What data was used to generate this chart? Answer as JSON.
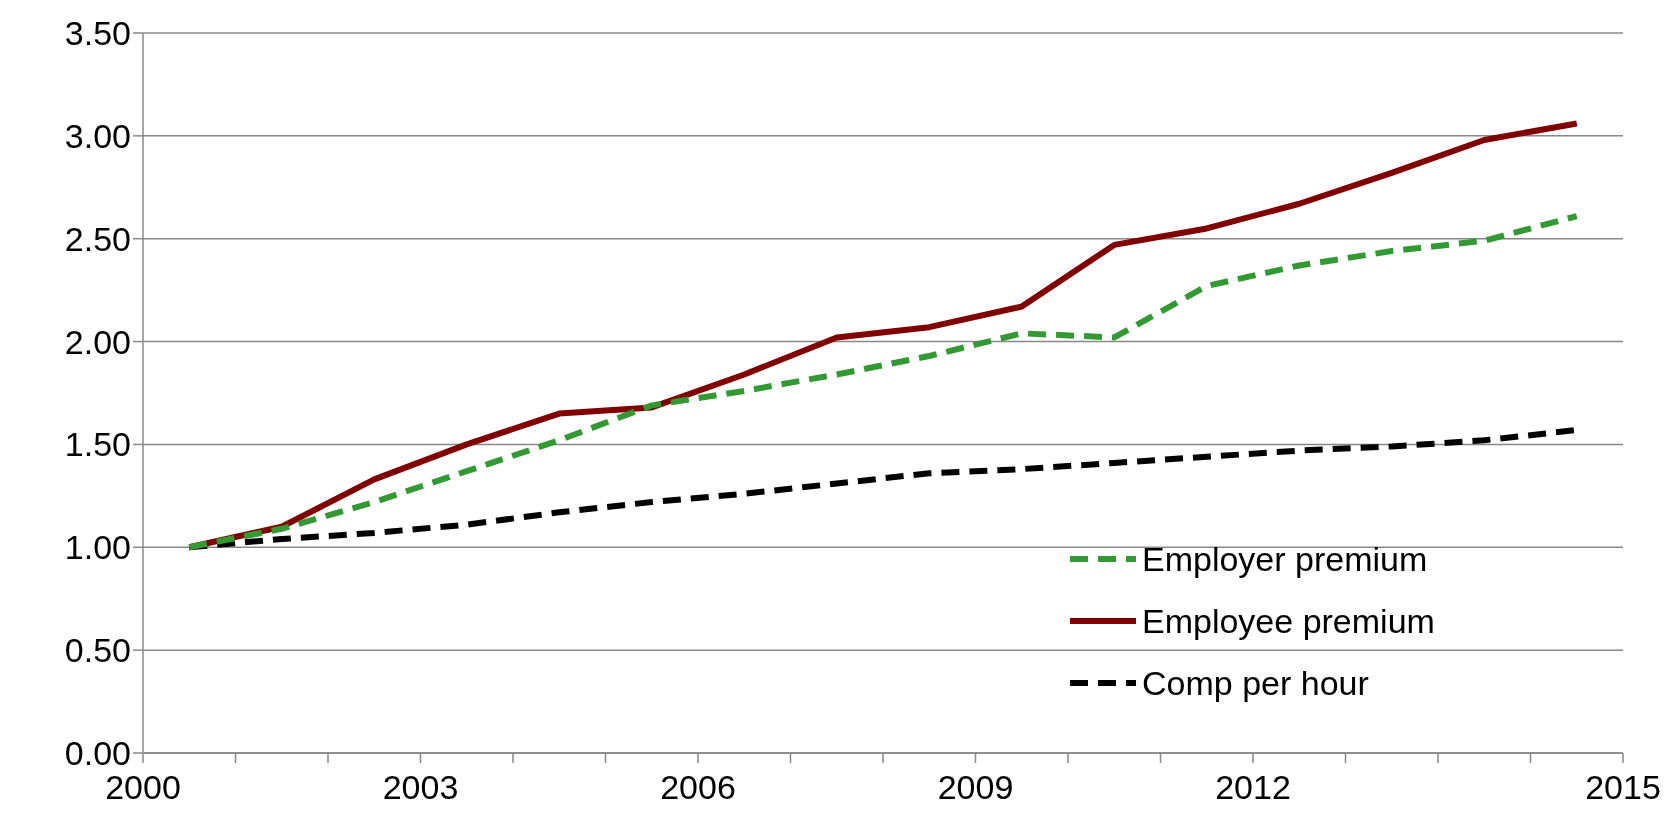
{
  "chart_data": {
    "type": "line",
    "x": [
      2000,
      2001,
      2002,
      2003,
      2004,
      2005,
      2006,
      2007,
      2008,
      2009,
      2010,
      2011,
      2012,
      2013,
      2014,
      2015
    ],
    "series": [
      {
        "name": "Employer premium",
        "color": "#339933",
        "line_style": "dashed",
        "values": [
          1.0,
          1.09,
          1.22,
          1.37,
          1.52,
          1.69,
          1.76,
          1.84,
          1.93,
          2.04,
          2.02,
          2.27,
          2.37,
          2.44,
          2.49,
          2.61
        ]
      },
      {
        "name": "Employee premium",
        "color": "#800000",
        "line_style": "solid",
        "values": [
          1.0,
          1.1,
          1.33,
          1.5,
          1.65,
          1.68,
          1.84,
          2.02,
          2.07,
          2.17,
          2.47,
          2.55,
          2.67,
          2.82,
          2.98,
          3.06
        ]
      },
      {
        "name": "Comp per hour",
        "color": "#000000",
        "line_style": "dashed",
        "values": [
          1.0,
          1.04,
          1.07,
          1.11,
          1.17,
          1.22,
          1.26,
          1.31,
          1.36,
          1.38,
          1.41,
          1.44,
          1.47,
          1.49,
          1.52,
          1.57
        ]
      }
    ],
    "xlim": [
      1999.5,
      2015.5
    ],
    "xticks": [
      {
        "value": 1999.5,
        "label": "2000"
      },
      {
        "value": 2000.5,
        "label": null
      },
      {
        "value": 2001.5,
        "label": null
      },
      {
        "value": 2002.5,
        "label": "2003"
      },
      {
        "value": 2003.5,
        "label": null
      },
      {
        "value": 2004.5,
        "label": null
      },
      {
        "value": 2005.5,
        "label": "2006"
      },
      {
        "value": 2006.5,
        "label": null
      },
      {
        "value": 2007.5,
        "label": null
      },
      {
        "value": 2008.5,
        "label": "2009"
      },
      {
        "value": 2009.5,
        "label": null
      },
      {
        "value": 2010.5,
        "label": null
      },
      {
        "value": 2011.5,
        "label": "2012"
      },
      {
        "value": 2012.5,
        "label": null
      },
      {
        "value": 2013.5,
        "label": null
      },
      {
        "value": 2014.5,
        "label": null
      },
      {
        "value": 2015.5,
        "label": "2015"
      }
    ],
    "ylim": [
      0,
      3.5
    ],
    "yticks": [
      {
        "value": 0,
        "label": "0.00"
      },
      {
        "value": 0.5,
        "label": "0.50"
      },
      {
        "value": 1,
        "label": "1.00"
      },
      {
        "value": 1.5,
        "label": "1.50"
      },
      {
        "value": 2,
        "label": "2.00"
      },
      {
        "value": 2.5,
        "label": "2.50"
      },
      {
        "value": 3,
        "label": "3.00"
      },
      {
        "value": 3.5,
        "label": "3.50"
      }
    ],
    "grid": "y",
    "legend": "bottom right",
    "marker": "none"
  }
}
